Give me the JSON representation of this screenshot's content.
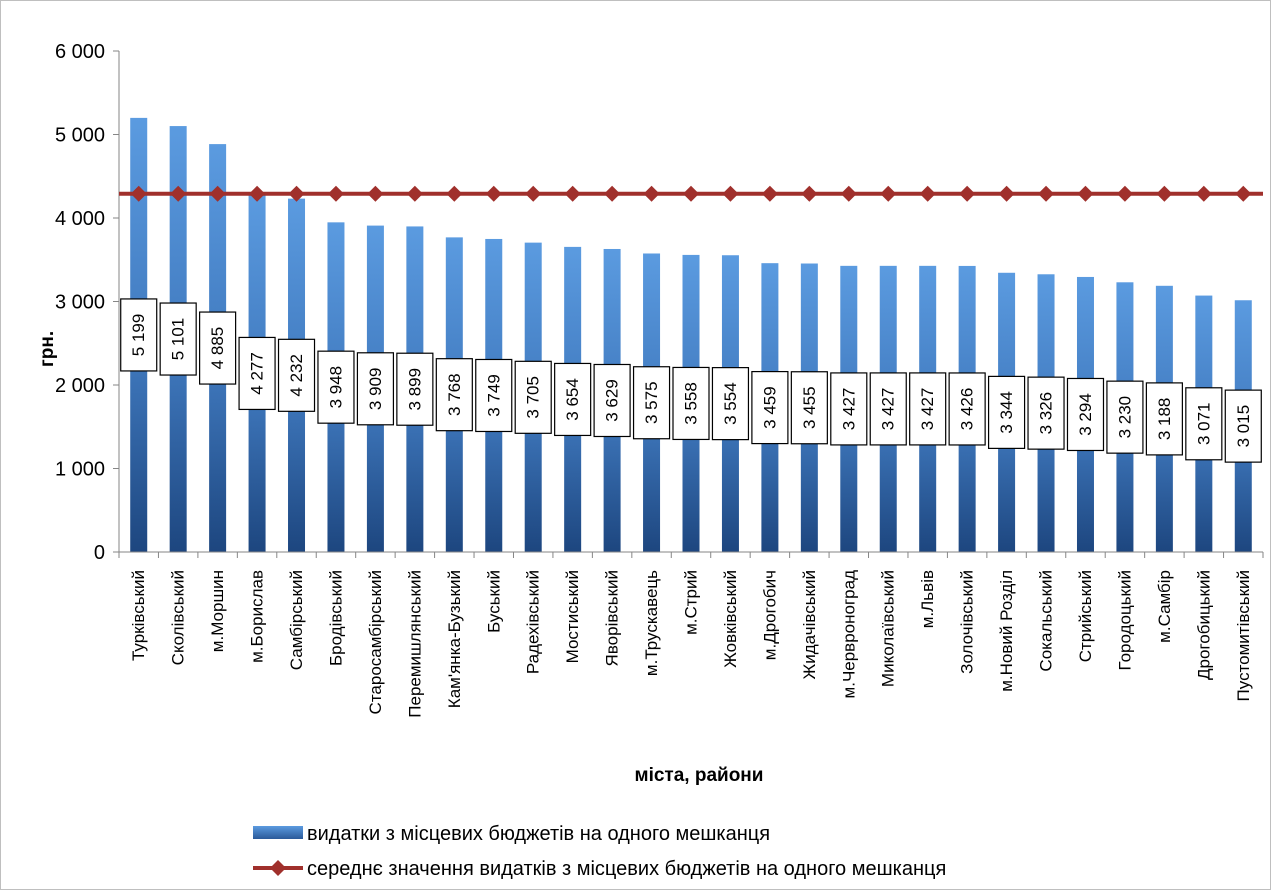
{
  "chart_data": {
    "type": "bar",
    "xlabel": "міста, райони",
    "ylabel": "грн.",
    "ylim": [
      0,
      6000
    ],
    "yticks": [
      0,
      1000,
      2000,
      3000,
      4000,
      5000,
      6000
    ],
    "ytick_labels": [
      "0",
      "1 000",
      "2 000",
      "3 000",
      "4 000",
      "5 000",
      "6 000"
    ],
    "grid": false,
    "legend_position": "bottom",
    "categories": [
      "Турківський",
      "Сколівський",
      "м.Моршин",
      "м.Борислав",
      "Самбірський",
      "Бродівський",
      "Старосамбірський",
      "Перемишлянський",
      "Кам'янка-Бузький",
      "Буський",
      "Радехівський",
      "Мостиський",
      "Яворівський",
      "м.Трускавець",
      "м.Стрий",
      "Жовківський",
      "м.Дрогобич",
      "Жидачівський",
      "м.Червроноград",
      "Миколаївський",
      "м.Львів",
      "Золочівський",
      "м.Новий Розділ",
      "Сокальський",
      "Стрийський",
      "Городоцький",
      "м.Самбір",
      "Дрогобицький",
      "Пустомитівський"
    ],
    "series": [
      {
        "name": "видатки з місцевих бюджетів на одного мешканця",
        "type": "bar",
        "color": "#4a86cc",
        "values": [
          5199,
          5101,
          4885,
          4277,
          4232,
          3948,
          3909,
          3899,
          3768,
          3749,
          3705,
          3654,
          3629,
          3575,
          3558,
          3554,
          3459,
          3455,
          3427,
          3427,
          3427,
          3426,
          3344,
          3326,
          3294,
          3230,
          3188,
          3071,
          3015
        ],
        "labels": [
          "5 199",
          "5 101",
          "4 885",
          "4 277",
          "4 232",
          "3 948",
          "3 909",
          "3 899",
          "3 768",
          "3 749",
          "3 705",
          "3 654",
          "3 629",
          "3 575",
          "3 558",
          "3 554",
          "3 459",
          "3 455",
          "3 427",
          "3 427",
          "3 427",
          "3 426",
          "3 344",
          "3 326",
          "3 294",
          "3 230",
          "3 188",
          "3 071",
          "3 015"
        ]
      },
      {
        "name": "середнє значення видатків з місцевих бюджетів на одного мешканця",
        "type": "line",
        "color": "#a0302c",
        "values": [
          4290,
          4290,
          4290,
          4290,
          4290,
          4290,
          4290,
          4290,
          4290,
          4290,
          4290,
          4290,
          4290,
          4290,
          4290,
          4290,
          4290,
          4290,
          4290,
          4290,
          4290,
          4290,
          4290,
          4290,
          4290,
          4290,
          4290,
          4290,
          4290
        ]
      }
    ]
  }
}
